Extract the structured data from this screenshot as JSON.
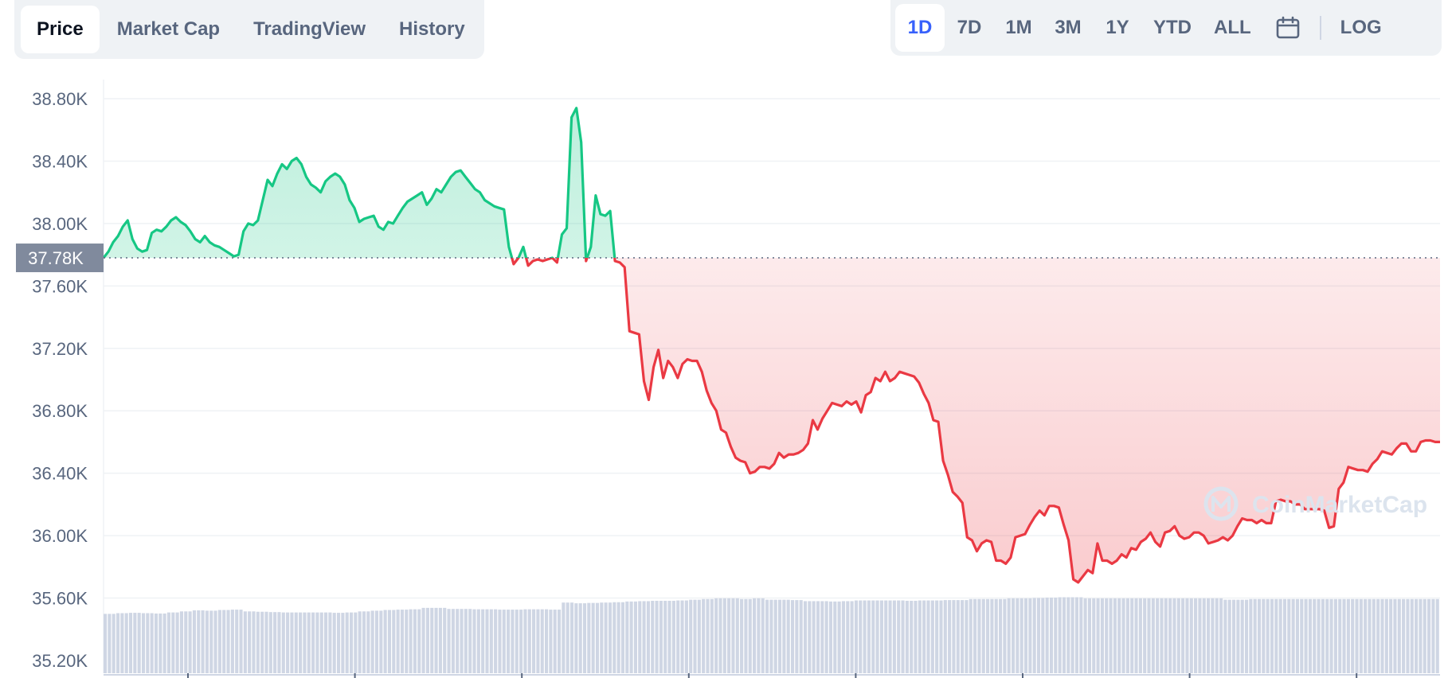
{
  "tabs": [
    {
      "label": "Price",
      "active": true
    },
    {
      "label": "Market Cap",
      "active": false
    },
    {
      "label": "TradingView",
      "active": false
    },
    {
      "label": "History",
      "active": false
    }
  ],
  "ranges": [
    {
      "label": "1D",
      "active": true
    },
    {
      "label": "7D",
      "active": false
    },
    {
      "label": "1M",
      "active": false
    },
    {
      "label": "3M",
      "active": false
    },
    {
      "label": "1Y",
      "active": false
    },
    {
      "label": "YTD",
      "active": false
    },
    {
      "label": "ALL",
      "active": false
    }
  ],
  "calendar_icon": "calendar-icon",
  "log_label": "LOG",
  "watermark": "CoinMarketCap",
  "colors": {
    "up": "#16c784",
    "down": "#ea3943",
    "volume": "#cfd6e4",
    "grid": "#eff2f5",
    "current_label_bg": "#808a9d",
    "active_range": "#3861fb"
  },
  "chart_data": {
    "type": "line",
    "title": "",
    "xlabel": "",
    "ylabel": "",
    "ylim": [
      35200,
      38800
    ],
    "yticks": [
      {
        "value": 38800,
        "label": "38.80K"
      },
      {
        "value": 38400,
        "label": "38.40K"
      },
      {
        "value": 38000,
        "label": "38.00K"
      },
      {
        "value": 37600,
        "label": "37.60K"
      },
      {
        "value": 37200,
        "label": "37.20K"
      },
      {
        "value": 36800,
        "label": "36.80K"
      },
      {
        "value": 36400,
        "label": "36.40K"
      },
      {
        "value": 36000,
        "label": "36.00K"
      },
      {
        "value": 35600,
        "label": "35.60K"
      },
      {
        "value": 35200,
        "label": "35.20K"
      }
    ],
    "baseline": {
      "value": 37780,
      "label": "37.78K"
    },
    "grid": true,
    "series": [
      {
        "values": [
          37780,
          37820,
          37880,
          37920,
          37980,
          38020,
          37900,
          37840,
          37820,
          37830,
          37940,
          37960,
          37950,
          37980,
          38020,
          38040,
          38010,
          37990,
          37950,
          37900,
          37880,
          37920,
          37880,
          37860,
          37850,
          37830,
          37810,
          37790,
          37800,
          37950,
          38000,
          37990,
          38020,
          38150,
          38280,
          38240,
          38320,
          38380,
          38350,
          38400,
          38420,
          38380,
          38300,
          38250,
          38230,
          38200,
          38270,
          38300,
          38320,
          38300,
          38250,
          38150,
          38100,
          38010,
          38030,
          38040,
          38050,
          37980,
          37960,
          38010,
          38000,
          38050,
          38100,
          38140,
          38160,
          38180,
          38200,
          38120,
          38160,
          38220,
          38200,
          38250,
          38300,
          38330,
          38340,
          38300,
          38260,
          38220,
          38200,
          38150,
          38130,
          38110,
          38100,
          38090,
          37850,
          37740,
          37780,
          37850,
          37730,
          37760,
          37770,
          37760,
          37770,
          37780,
          37750,
          37930,
          37970,
          38680,
          38740,
          38520,
          37760,
          37850,
          38180,
          38060,
          38050,
          38080,
          37760,
          37750,
          37720,
          37310,
          37300,
          37290,
          36990,
          36870,
          37080,
          37190,
          37010,
          37120,
          37080,
          37010,
          37100,
          37130,
          37120,
          37120,
          37050,
          36930,
          36850,
          36800,
          36680,
          36660,
          36570,
          36500,
          36480,
          36470,
          36400,
          36410,
          36440,
          36440,
          36430,
          36460,
          36530,
          36500,
          36520,
          36520,
          36530,
          36550,
          36590,
          36740,
          36680,
          36750,
          36800,
          36850,
          36840,
          36830,
          36860,
          36840,
          36860,
          36790,
          36900,
          36920,
          37010,
          36990,
          37050,
          36990,
          37010,
          37050,
          37040,
          37030,
          37020,
          36980,
          36910,
          36850,
          36740,
          36730,
          36480,
          36390,
          36280,
          36250,
          36210,
          35990,
          35970,
          35900,
          35950,
          35970,
          35960,
          35840,
          35840,
          35820,
          35860,
          35990,
          36000,
          36010,
          36070,
          36120,
          36160,
          36130,
          36190,
          36190,
          36180,
          36070,
          35970,
          35720,
          35700,
          35740,
          35780,
          35760,
          35950,
          35840,
          35840,
          35820,
          35840,
          35880,
          35860,
          35920,
          35910,
          35960,
          35980,
          36020,
          35960,
          35930,
          36020,
          36030,
          36060,
          36000,
          35980,
          35990,
          36020,
          36020,
          36000,
          35950,
          35960,
          35970,
          35990,
          35970,
          36000,
          36060,
          36110,
          36100,
          36100,
          36080,
          36100,
          36080,
          36080,
          36220,
          36230,
          36220,
          36220,
          36200,
          36200,
          36170,
          36170,
          36170,
          36170,
          36160,
          36050,
          36060,
          36300,
          36340,
          36440,
          36430,
          36420,
          36420,
          36410,
          36460,
          36490,
          36540,
          36530,
          36520,
          36560,
          36590,
          36590,
          36540,
          36540,
          36600,
          36610,
          36610,
          36600,
          36600
        ]
      }
    ],
    "volume": {
      "relative_values": [
        0.18,
        0.2,
        0.21,
        0.2,
        0.19,
        0.22,
        0.25,
        0.28,
        0.27,
        0.29,
        0.3,
        0.25,
        0.24,
        0.23,
        0.22,
        0.22,
        0.22,
        0.22,
        0.21,
        0.22,
        0.25,
        0.27,
        0.29,
        0.3,
        0.31,
        0.35,
        0.35,
        0.32,
        0.32,
        0.31,
        0.31,
        0.3,
        0.3,
        0.31,
        0.31,
        0.3,
        0.5,
        0.48,
        0.49,
        0.5,
        0.51,
        0.53,
        0.54,
        0.55,
        0.55,
        0.56,
        0.58,
        0.6,
        0.62,
        0.62,
        0.6,
        0.62,
        0.58,
        0.58,
        0.57,
        0.54,
        0.54,
        0.53,
        0.54,
        0.56,
        0.56,
        0.56,
        0.56,
        0.55,
        0.56,
        0.56,
        0.57,
        0.57,
        0.6,
        0.6,
        0.6,
        0.62,
        0.62,
        0.63,
        0.64,
        0.65,
        0.65,
        0.62,
        0.62,
        0.62,
        0.62,
        0.62,
        0.62,
        0.62,
        0.62,
        0.62,
        0.62,
        0.62,
        0.58,
        0.58,
        0.6,
        0.6,
        0.6,
        0.6,
        0.6,
        0.6,
        0.6,
        0.6,
        0.6,
        0.6,
        0.6,
        0.6,
        0.6,
        0.6,
        0.6
      ]
    },
    "x_tick_count": 8
  }
}
